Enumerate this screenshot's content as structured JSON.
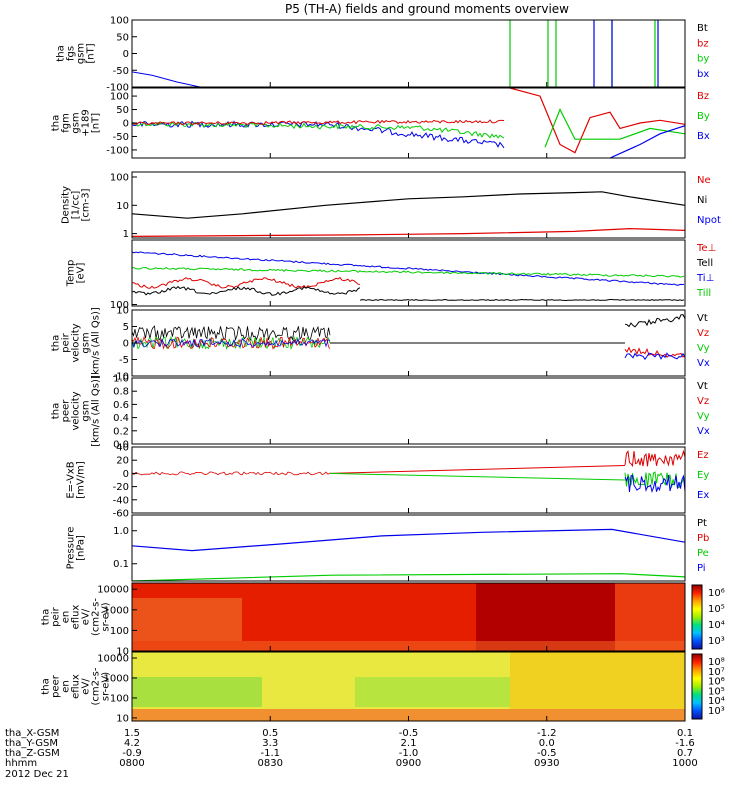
{
  "title": "P5 (TH-A) fields and ground moments overview",
  "date_label": "2012 Dec 21",
  "colors": {
    "black": "#000000",
    "red": "#e00000",
    "green": "#00cc00",
    "blue": "#0000ee",
    "mag_extra": "#ff0000"
  },
  "chart_data": [
    {
      "id": "fgs",
      "type": "line",
      "ylabel": [
        "tha",
        "fgs",
        "gsm",
        "[nT]"
      ],
      "ylim": [
        -100,
        100
      ],
      "yticks": [
        "100",
        "50",
        "0",
        "-50",
        "-100"
      ],
      "legend": [
        {
          "label": "Bt",
          "color": "#000000"
        },
        {
          "label": "bz",
          "color": "#e00000"
        },
        {
          "label": "by",
          "color": "#00cc00"
        },
        {
          "label": "bx",
          "color": "#0000ee"
        }
      ]
    },
    {
      "id": "fgm",
      "type": "line",
      "ylabel": [
        "tha",
        "fgm",
        "gsm",
        "+189",
        "[nT]"
      ],
      "ylim": [
        -130,
        130
      ],
      "yticks": [
        "100",
        "50",
        "0",
        "-50",
        "-100"
      ],
      "legend": [
        {
          "label": "Bz",
          "color": "#e00000"
        },
        {
          "label": "By",
          "color": "#00cc00"
        },
        {
          "label": "Bx",
          "color": "#0000ee"
        }
      ]
    },
    {
      "id": "density",
      "type": "line",
      "ylabel": [
        "Density",
        "[1/cc]",
        "[cm-3]"
      ],
      "yscale": "log",
      "ylim": [
        0.7,
        150
      ],
      "yticks": [
        "100",
        "10",
        "1"
      ],
      "legend": [
        {
          "label": "Ne",
          "color": "#e00000"
        },
        {
          "label": "Ni",
          "color": "#000000"
        },
        {
          "label": "Npot",
          "color": "#0000ee"
        }
      ],
      "series": [
        {
          "name": "Ni",
          "t": [
            0,
            0.1,
            0.2,
            0.35,
            0.5,
            0.6,
            0.7,
            0.8,
            0.85,
            0.9,
            1.0
          ],
          "values": [
            5,
            3.5,
            5,
            10,
            17,
            20,
            25,
            28,
            30,
            20,
            10
          ]
        },
        {
          "name": "Ne",
          "t": [
            0,
            0.2,
            0.4,
            0.6,
            0.8,
            0.9,
            1.0
          ],
          "values": [
            0.8,
            0.85,
            0.9,
            1.0,
            1.2,
            1.5,
            1.3
          ]
        }
      ]
    },
    {
      "id": "temp",
      "type": "line",
      "ylabel": [
        "Temp",
        "[eV]"
      ],
      "yscale": "log",
      "ylim": [
        90,
        10000
      ],
      "yticks": [
        "100"
      ],
      "legend": [
        {
          "label": "Te⊥",
          "color": "#e00000"
        },
        {
          "label": "Tell",
          "color": "#000000"
        },
        {
          "label": "Ti⊥",
          "color": "#0000ee"
        },
        {
          "label": "Till",
          "color": "#00cc00"
        }
      ]
    },
    {
      "id": "peir_vel",
      "type": "line",
      "ylabel": [
        "tha",
        "peir",
        "velocity",
        "gsm",
        "[km/s (All Qs)]"
      ],
      "ylim": [
        -10,
        10
      ],
      "yticks": [
        "10",
        "5",
        "0",
        "-5",
        "-10"
      ],
      "legend": [
        {
          "label": "Vt",
          "color": "#000000"
        },
        {
          "label": "Vz",
          "color": "#e00000"
        },
        {
          "label": "Vy",
          "color": "#00cc00"
        },
        {
          "label": "Vx",
          "color": "#0000ee"
        }
      ]
    },
    {
      "id": "peer_vel",
      "type": "line",
      "ylabel": [
        "tha",
        "peer",
        "velocity",
        "gsm",
        "[km/s (All Qs)]"
      ],
      "ylim": [
        0,
        1
      ],
      "yticks": [
        "1.0",
        "0.8",
        "0.6",
        "0.4",
        "0.2",
        "0.0"
      ],
      "legend": [
        {
          "label": "Vt",
          "color": "#000000"
        },
        {
          "label": "Vz",
          "color": "#e00000"
        },
        {
          "label": "Vy",
          "color": "#00cc00"
        },
        {
          "label": "Vx",
          "color": "#0000ee"
        }
      ]
    },
    {
      "id": "efield",
      "type": "line",
      "ylabel": [
        "E=-VxB",
        "[mV/m]"
      ],
      "ylim": [
        -60,
        40
      ],
      "yticks": [
        "40",
        "20",
        "0",
        "-20",
        "-40",
        "-60"
      ],
      "legend": [
        {
          "label": "Ez",
          "color": "#e00000"
        },
        {
          "label": "Ey",
          "color": "#00cc00"
        },
        {
          "label": "Ex",
          "color": "#0000ee"
        }
      ]
    },
    {
      "id": "pressure",
      "type": "line",
      "ylabel": [
        "Pressure",
        "[nPa]"
      ],
      "yscale": "log",
      "ylim": [
        0.03,
        3
      ],
      "yticks": [
        "1.0",
        "0.1"
      ],
      "legend": [
        {
          "label": "Pt",
          "color": "#000000"
        },
        {
          "label": "Pb",
          "color": "#e00000"
        },
        {
          "label": "Pe",
          "color": "#00cc00"
        },
        {
          "label": "Pi",
          "color": "#0000ee"
        }
      ]
    },
    {
      "id": "peir_spec",
      "type": "heatmap",
      "ylabel": [
        "tha",
        "peir",
        "en",
        "eflux",
        "eV/",
        "(cm2-s-",
        "sr-eV)"
      ],
      "yscale": "log",
      "ylim": [
        10,
        20000
      ],
      "yticks": [
        "10000",
        "1000",
        "100",
        "10"
      ],
      "colorbar": [
        "10⁶",
        "10⁵",
        "10⁴",
        "10³"
      ]
    },
    {
      "id": "peer_spec",
      "type": "heatmap",
      "ylabel": [
        "tha",
        "peer",
        "en",
        "eflux",
        "eV/",
        "(cm2-s-",
        "sr-eV)"
      ],
      "yscale": "log",
      "ylim": [
        7,
        20000
      ],
      "yticks": [
        "10000",
        "1000",
        "100",
        "10"
      ],
      "colorbar": [
        "10⁸",
        "10⁷",
        "10⁶",
        "10⁵",
        "10⁴",
        "10³"
      ]
    }
  ],
  "xaxis": {
    "row_labels": [
      "tha_X-GSM",
      "tha_Y-GSM",
      "tha_Z-GSM",
      "hhmm"
    ],
    "columns": [
      {
        "x": "1.5",
        "y": "4.2",
        "z": "-0.9",
        "t": "0800"
      },
      {
        "x": "0.5",
        "y": "3.3",
        "z": "-1.1",
        "t": "0830"
      },
      {
        "x": "-0.5",
        "y": "2.1",
        "z": "-1.0",
        "t": "0900"
      },
      {
        "x": "-1.2",
        "y": "0.0",
        "z": "-0.5",
        "t": "0930"
      },
      {
        "x": "0.1",
        "y": "-1.6",
        "z": "0.7",
        "t": "1000"
      }
    ]
  }
}
